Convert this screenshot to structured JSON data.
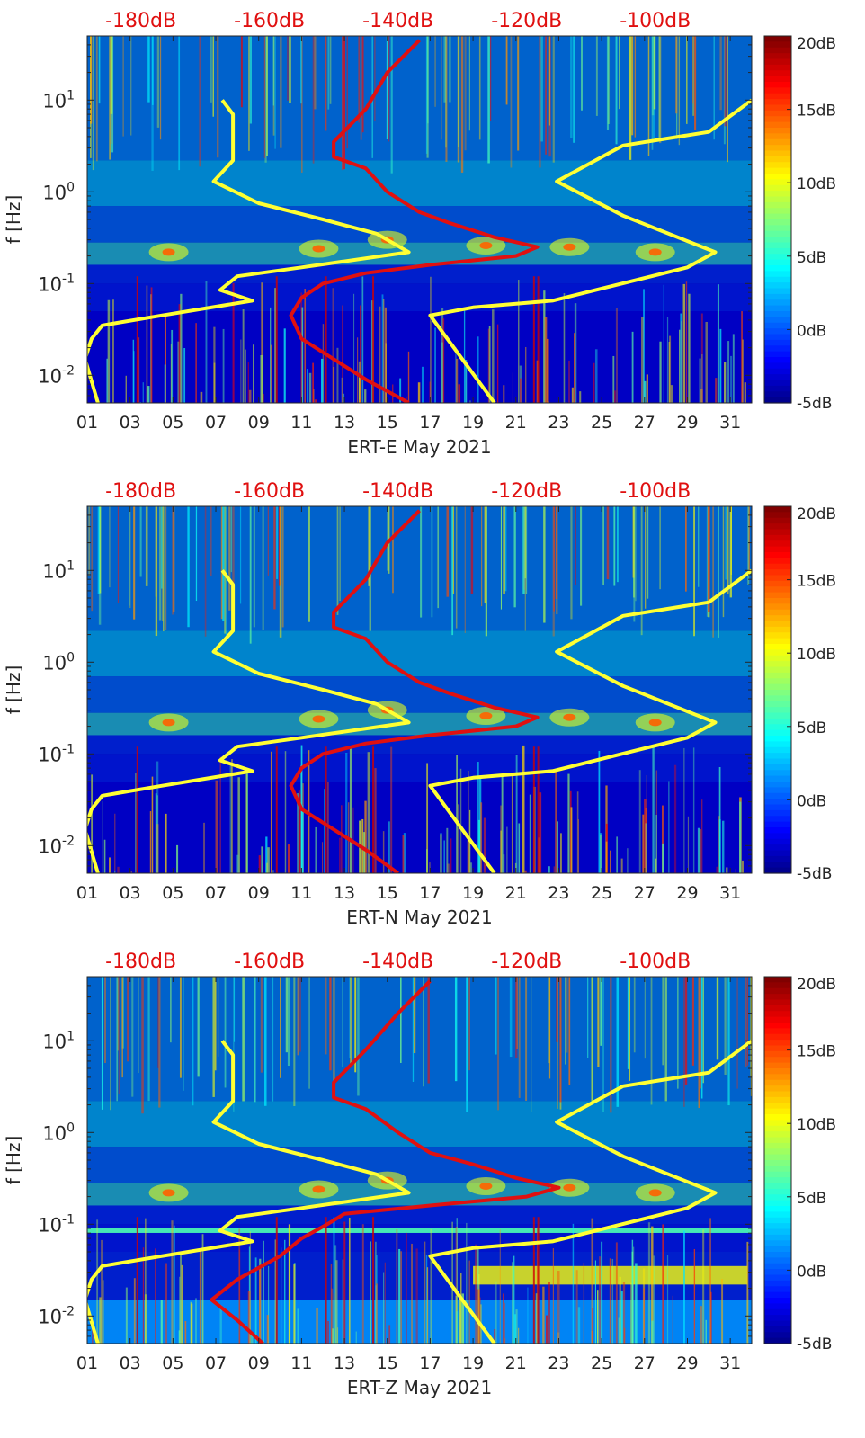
{
  "colors": {
    "nlnm_curve": "#ffff33",
    "spectral_curve": "#e01010",
    "top_scale_text": "#e01010",
    "background_deep_blue": "#00008f"
  },
  "colorbar": {
    "colormap": "jet",
    "range_db": [
      -5,
      20
    ],
    "tick_labels": [
      "20dB",
      "15dB",
      "10dB",
      "5dB",
      "0dB",
      "-5dB"
    ],
    "tick_values": [
      20,
      15,
      10,
      5,
      0,
      -5
    ]
  },
  "chart_data": [
    {
      "type": "heatmap",
      "xlabel": "ERT-E May 2021",
      "ylabel": "f [Hz]",
      "x_scale": "linear (day of month)",
      "y_scale": "log",
      "xlim": [
        1,
        32
      ],
      "ylim": [
        0.005,
        50
      ],
      "x_tick_labels": [
        "01",
        "03",
        "05",
        "07",
        "09",
        "11",
        "13",
        "15",
        "17",
        "19",
        "21",
        "23",
        "25",
        "27",
        "29",
        "31"
      ],
      "y_tick_labels": [
        "10^-2",
        "10^-1",
        "10^0",
        "10^1"
      ],
      "y_tick_values": [
        0.01,
        0.1,
        1,
        10
      ],
      "top_scale": {
        "tick_labels": [
          "-180dB",
          "-160dB",
          "-140dB",
          "-120dB",
          "-100dB"
        ],
        "tick_values": [
          -180,
          -160,
          -140,
          -120,
          -100
        ],
        "x_at_label": [
          3.5,
          9.5,
          15.5,
          21.5,
          27.5
        ]
      },
      "series": [
        {
          "color": "yellow",
          "x": [
            7.3,
            7.8,
            7.8,
            6.9,
            9.0,
            12.0,
            14.5,
            16.0,
            11.0,
            8.0,
            7.2,
            8.7,
            4.5,
            1.7,
            1.2,
            0.9,
            1.5
          ],
          "y": [
            10,
            7,
            2.2,
            1.3,
            0.75,
            0.5,
            0.35,
            0.22,
            0.15,
            0.12,
            0.085,
            0.065,
            0.045,
            0.035,
            0.025,
            0.015,
            0.005
          ]
        },
        {
          "color": "yellow",
          "x": [
            32.0,
            30.0,
            26.0,
            22.9,
            26.0,
            30.3,
            29.0,
            22.7,
            19.0,
            17.0,
            20.0
          ],
          "y": [
            10,
            4.5,
            3.2,
            1.3,
            0.55,
            0.22,
            0.15,
            0.065,
            0.055,
            0.045,
            0.005
          ]
        },
        {
          "color": "red",
          "x": [
            16.5,
            15.0,
            14.0,
            12.5,
            12.5,
            14.0,
            15.0,
            16.5,
            18.0,
            20.0,
            22.0,
            21.0,
            17.0,
            14.0,
            12.0,
            11.0,
            10.5,
            11.0,
            12.5,
            14.0,
            16.0
          ],
          "y": [
            45,
            20,
            8,
            3.5,
            2.4,
            1.8,
            1.0,
            0.6,
            0.45,
            0.32,
            0.25,
            0.2,
            0.16,
            0.13,
            0.1,
            0.07,
            0.045,
            0.025,
            0.015,
            0.009,
            0.005
          ]
        }
      ]
    },
    {
      "type": "heatmap",
      "xlabel": "ERT-N May 2021",
      "ylabel": "f [Hz]",
      "x_scale": "linear (day of month)",
      "y_scale": "log",
      "xlim": [
        1,
        32
      ],
      "ylim": [
        0.005,
        50
      ],
      "x_tick_labels": [
        "01",
        "03",
        "05",
        "07",
        "09",
        "11",
        "13",
        "15",
        "17",
        "19",
        "21",
        "23",
        "25",
        "27",
        "29",
        "31"
      ],
      "y_tick_labels": [
        "10^-2",
        "10^-1",
        "10^0",
        "10^1"
      ],
      "y_tick_values": [
        0.01,
        0.1,
        1,
        10
      ],
      "top_scale": {
        "tick_labels": [
          "-180dB",
          "-160dB",
          "-140dB",
          "-120dB",
          "-100dB"
        ],
        "tick_values": [
          -180,
          -160,
          -140,
          -120,
          -100
        ],
        "x_at_label": [
          3.5,
          9.5,
          15.5,
          21.5,
          27.5
        ]
      },
      "series": [
        {
          "color": "yellow",
          "x": [
            7.3,
            7.8,
            7.8,
            6.9,
            9.0,
            12.0,
            14.5,
            16.0,
            11.0,
            8.0,
            7.2,
            8.7,
            4.5,
            1.7,
            1.2,
            0.9,
            1.5
          ],
          "y": [
            10,
            7,
            2.2,
            1.3,
            0.75,
            0.5,
            0.35,
            0.22,
            0.15,
            0.12,
            0.085,
            0.065,
            0.045,
            0.035,
            0.025,
            0.015,
            0.005
          ]
        },
        {
          "color": "yellow",
          "x": [
            32.0,
            30.0,
            26.0,
            22.9,
            26.0,
            30.3,
            29.0,
            22.7,
            19.0,
            17.0,
            20.0
          ],
          "y": [
            10,
            4.5,
            3.2,
            1.3,
            0.55,
            0.22,
            0.15,
            0.065,
            0.055,
            0.045,
            0.005
          ]
        },
        {
          "color": "red",
          "x": [
            16.5,
            15.0,
            14.0,
            12.5,
            12.5,
            14.0,
            15.0,
            16.5,
            18.0,
            20.0,
            22.0,
            21.0,
            17.0,
            14.0,
            12.0,
            11.0,
            10.5,
            11.0,
            12.5,
            14.0,
            15.5
          ],
          "y": [
            45,
            20,
            8,
            3.5,
            2.4,
            1.8,
            1.0,
            0.6,
            0.45,
            0.32,
            0.25,
            0.2,
            0.16,
            0.13,
            0.1,
            0.07,
            0.045,
            0.025,
            0.015,
            0.009,
            0.005
          ]
        }
      ]
    },
    {
      "type": "heatmap",
      "xlabel": "ERT-Z May 2021",
      "ylabel": "f [Hz]",
      "x_scale": "linear (day of month)",
      "y_scale": "log",
      "xlim": [
        1,
        32
      ],
      "ylim": [
        0.005,
        50
      ],
      "x_tick_labels": [
        "01",
        "03",
        "05",
        "07",
        "09",
        "11",
        "13",
        "15",
        "17",
        "19",
        "21",
        "23",
        "25",
        "27",
        "29",
        "31"
      ],
      "y_tick_labels": [
        "10^-2",
        "10^-1",
        "10^0",
        "10^1"
      ],
      "y_tick_values": [
        0.01,
        0.1,
        1,
        10
      ],
      "top_scale": {
        "tick_labels": [
          "-180dB",
          "-160dB",
          "-140dB",
          "-120dB",
          "-100dB"
        ],
        "tick_values": [
          -180,
          -160,
          -140,
          -120,
          -100
        ],
        "x_at_label": [
          3.5,
          9.5,
          15.5,
          21.5,
          27.5
        ]
      },
      "series": [
        {
          "color": "yellow",
          "x": [
            7.3,
            7.8,
            7.8,
            6.9,
            9.0,
            12.0,
            14.5,
            16.0,
            11.0,
            8.0,
            7.2,
            8.7,
            4.5,
            1.7,
            1.2,
            0.9,
            1.5
          ],
          "y": [
            10,
            7,
            2.2,
            1.3,
            0.75,
            0.5,
            0.35,
            0.22,
            0.15,
            0.12,
            0.085,
            0.065,
            0.045,
            0.035,
            0.025,
            0.015,
            0.005
          ]
        },
        {
          "color": "yellow",
          "x": [
            32.0,
            30.0,
            26.0,
            22.9,
            26.0,
            30.3,
            29.0,
            22.7,
            19.0,
            17.0,
            20.0
          ],
          "y": [
            10,
            4.5,
            3.2,
            1.3,
            0.55,
            0.22,
            0.15,
            0.065,
            0.055,
            0.045,
            0.005
          ]
        },
        {
          "color": "red",
          "x": [
            17.0,
            15.5,
            14.0,
            12.5,
            12.5,
            14.0,
            15.5,
            17.0,
            19.0,
            21.0,
            23.0,
            21.5,
            17.0,
            13.0,
            12.2,
            11.0,
            10.0,
            8.0,
            6.8,
            8.0,
            9.2
          ],
          "y": [
            45,
            20,
            8,
            3.5,
            2.4,
            1.8,
            1.0,
            0.6,
            0.45,
            0.32,
            0.25,
            0.2,
            0.16,
            0.13,
            0.1,
            0.07,
            0.045,
            0.025,
            0.015,
            0.009,
            0.005
          ]
        }
      ]
    }
  ]
}
